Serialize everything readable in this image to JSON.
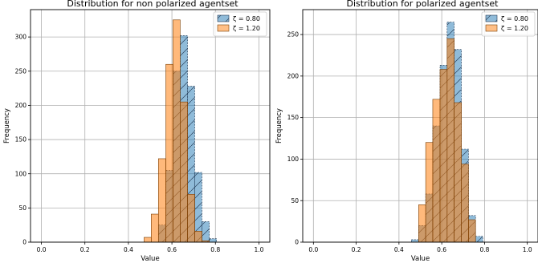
{
  "chart_data": [
    {
      "type": "histogram",
      "title": "Distribution for non polarized agentset",
      "xlabel": "Value",
      "ylabel": "Frequency",
      "xlim": [
        -0.05,
        1.05
      ],
      "ylim": [
        0,
        340
      ],
      "xticks": [
        0.0,
        0.2,
        0.4,
        0.6,
        0.8,
        1.0
      ],
      "xtick_labels": [
        "0.0",
        "0.2",
        "0.4",
        "0.6",
        "0.8",
        "1.0"
      ],
      "yticks": [
        0,
        50,
        100,
        150,
        200,
        250,
        300
      ],
      "grid": true,
      "legend_position": "top-right",
      "series": [
        {
          "name": "ζ = 0.80",
          "color": "#1f77b4",
          "hatch": "diagonal",
          "bins": [
            {
              "x0": 0.538,
              "x1": 0.572,
              "value": 25
            },
            {
              "x0": 0.572,
              "x1": 0.605,
              "value": 105
            },
            {
              "x0": 0.605,
              "x1": 0.638,
              "value": 250
            },
            {
              "x0": 0.638,
              "x1": 0.672,
              "value": 302
            },
            {
              "x0": 0.672,
              "x1": 0.705,
              "value": 228
            },
            {
              "x0": 0.705,
              "x1": 0.738,
              "value": 102
            },
            {
              "x0": 0.738,
              "x1": 0.772,
              "value": 30
            },
            {
              "x0": 0.772,
              "x1": 0.805,
              "value": 5
            }
          ]
        },
        {
          "name": "ζ = 1.20",
          "color": "#ff7f0e",
          "hatch": "none",
          "bins": [
            {
              "x0": 0.472,
              "x1": 0.505,
              "value": 7
            },
            {
              "x0": 0.505,
              "x1": 0.538,
              "value": 41
            },
            {
              "x0": 0.538,
              "x1": 0.572,
              "value": 122
            },
            {
              "x0": 0.572,
              "x1": 0.605,
              "value": 260
            },
            {
              "x0": 0.605,
              "x1": 0.638,
              "value": 325
            },
            {
              "x0": 0.638,
              "x1": 0.672,
              "value": 205
            },
            {
              "x0": 0.672,
              "x1": 0.705,
              "value": 70
            },
            {
              "x0": 0.705,
              "x1": 0.738,
              "value": 16
            },
            {
              "x0": 0.738,
              "x1": 0.772,
              "value": 2
            }
          ]
        }
      ]
    },
    {
      "type": "histogram",
      "title": "Distribution for polarized agentset",
      "xlabel": "Value",
      "ylabel": "Frequency",
      "xlim": [
        -0.05,
        1.05
      ],
      "ylim": [
        0,
        280
      ],
      "xticks": [
        0.0,
        0.2,
        0.4,
        0.6,
        0.8,
        1.0
      ],
      "xtick_labels": [
        "0.0",
        "0.2",
        "0.4",
        "0.6",
        "0.8",
        "1.0"
      ],
      "yticks": [
        0,
        50,
        100,
        150,
        200,
        250
      ],
      "grid": true,
      "legend_position": "top-right",
      "series": [
        {
          "name": "ζ = 0.80",
          "color": "#1f77b4",
          "hatch": "diagonal",
          "bins": [
            {
              "x0": 0.458,
              "x1": 0.492,
              "value": 3
            },
            {
              "x0": 0.492,
              "x1": 0.525,
              "value": 20
            },
            {
              "x0": 0.525,
              "x1": 0.558,
              "value": 58
            },
            {
              "x0": 0.558,
              "x1": 0.592,
              "value": 140
            },
            {
              "x0": 0.592,
              "x1": 0.625,
              "value": 213
            },
            {
              "x0": 0.625,
              "x1": 0.658,
              "value": 265
            },
            {
              "x0": 0.658,
              "x1": 0.692,
              "value": 232
            },
            {
              "x0": 0.692,
              "x1": 0.725,
              "value": 112
            },
            {
              "x0": 0.725,
              "x1": 0.758,
              "value": 32
            },
            {
              "x0": 0.758,
              "x1": 0.792,
              "value": 7
            }
          ]
        },
        {
          "name": "ζ = 1.20",
          "color": "#ff7f0e",
          "hatch": "none",
          "bins": [
            {
              "x0": 0.492,
              "x1": 0.525,
              "value": 45
            },
            {
              "x0": 0.525,
              "x1": 0.558,
              "value": 120
            },
            {
              "x0": 0.558,
              "x1": 0.592,
              "value": 172
            },
            {
              "x0": 0.592,
              "x1": 0.625,
              "value": 208
            },
            {
              "x0": 0.625,
              "x1": 0.658,
              "value": 245
            },
            {
              "x0": 0.658,
              "x1": 0.692,
              "value": 168
            },
            {
              "x0": 0.692,
              "x1": 0.725,
              "value": 94
            },
            {
              "x0": 0.725,
              "x1": 0.758,
              "value": 27
            }
          ]
        }
      ]
    }
  ]
}
